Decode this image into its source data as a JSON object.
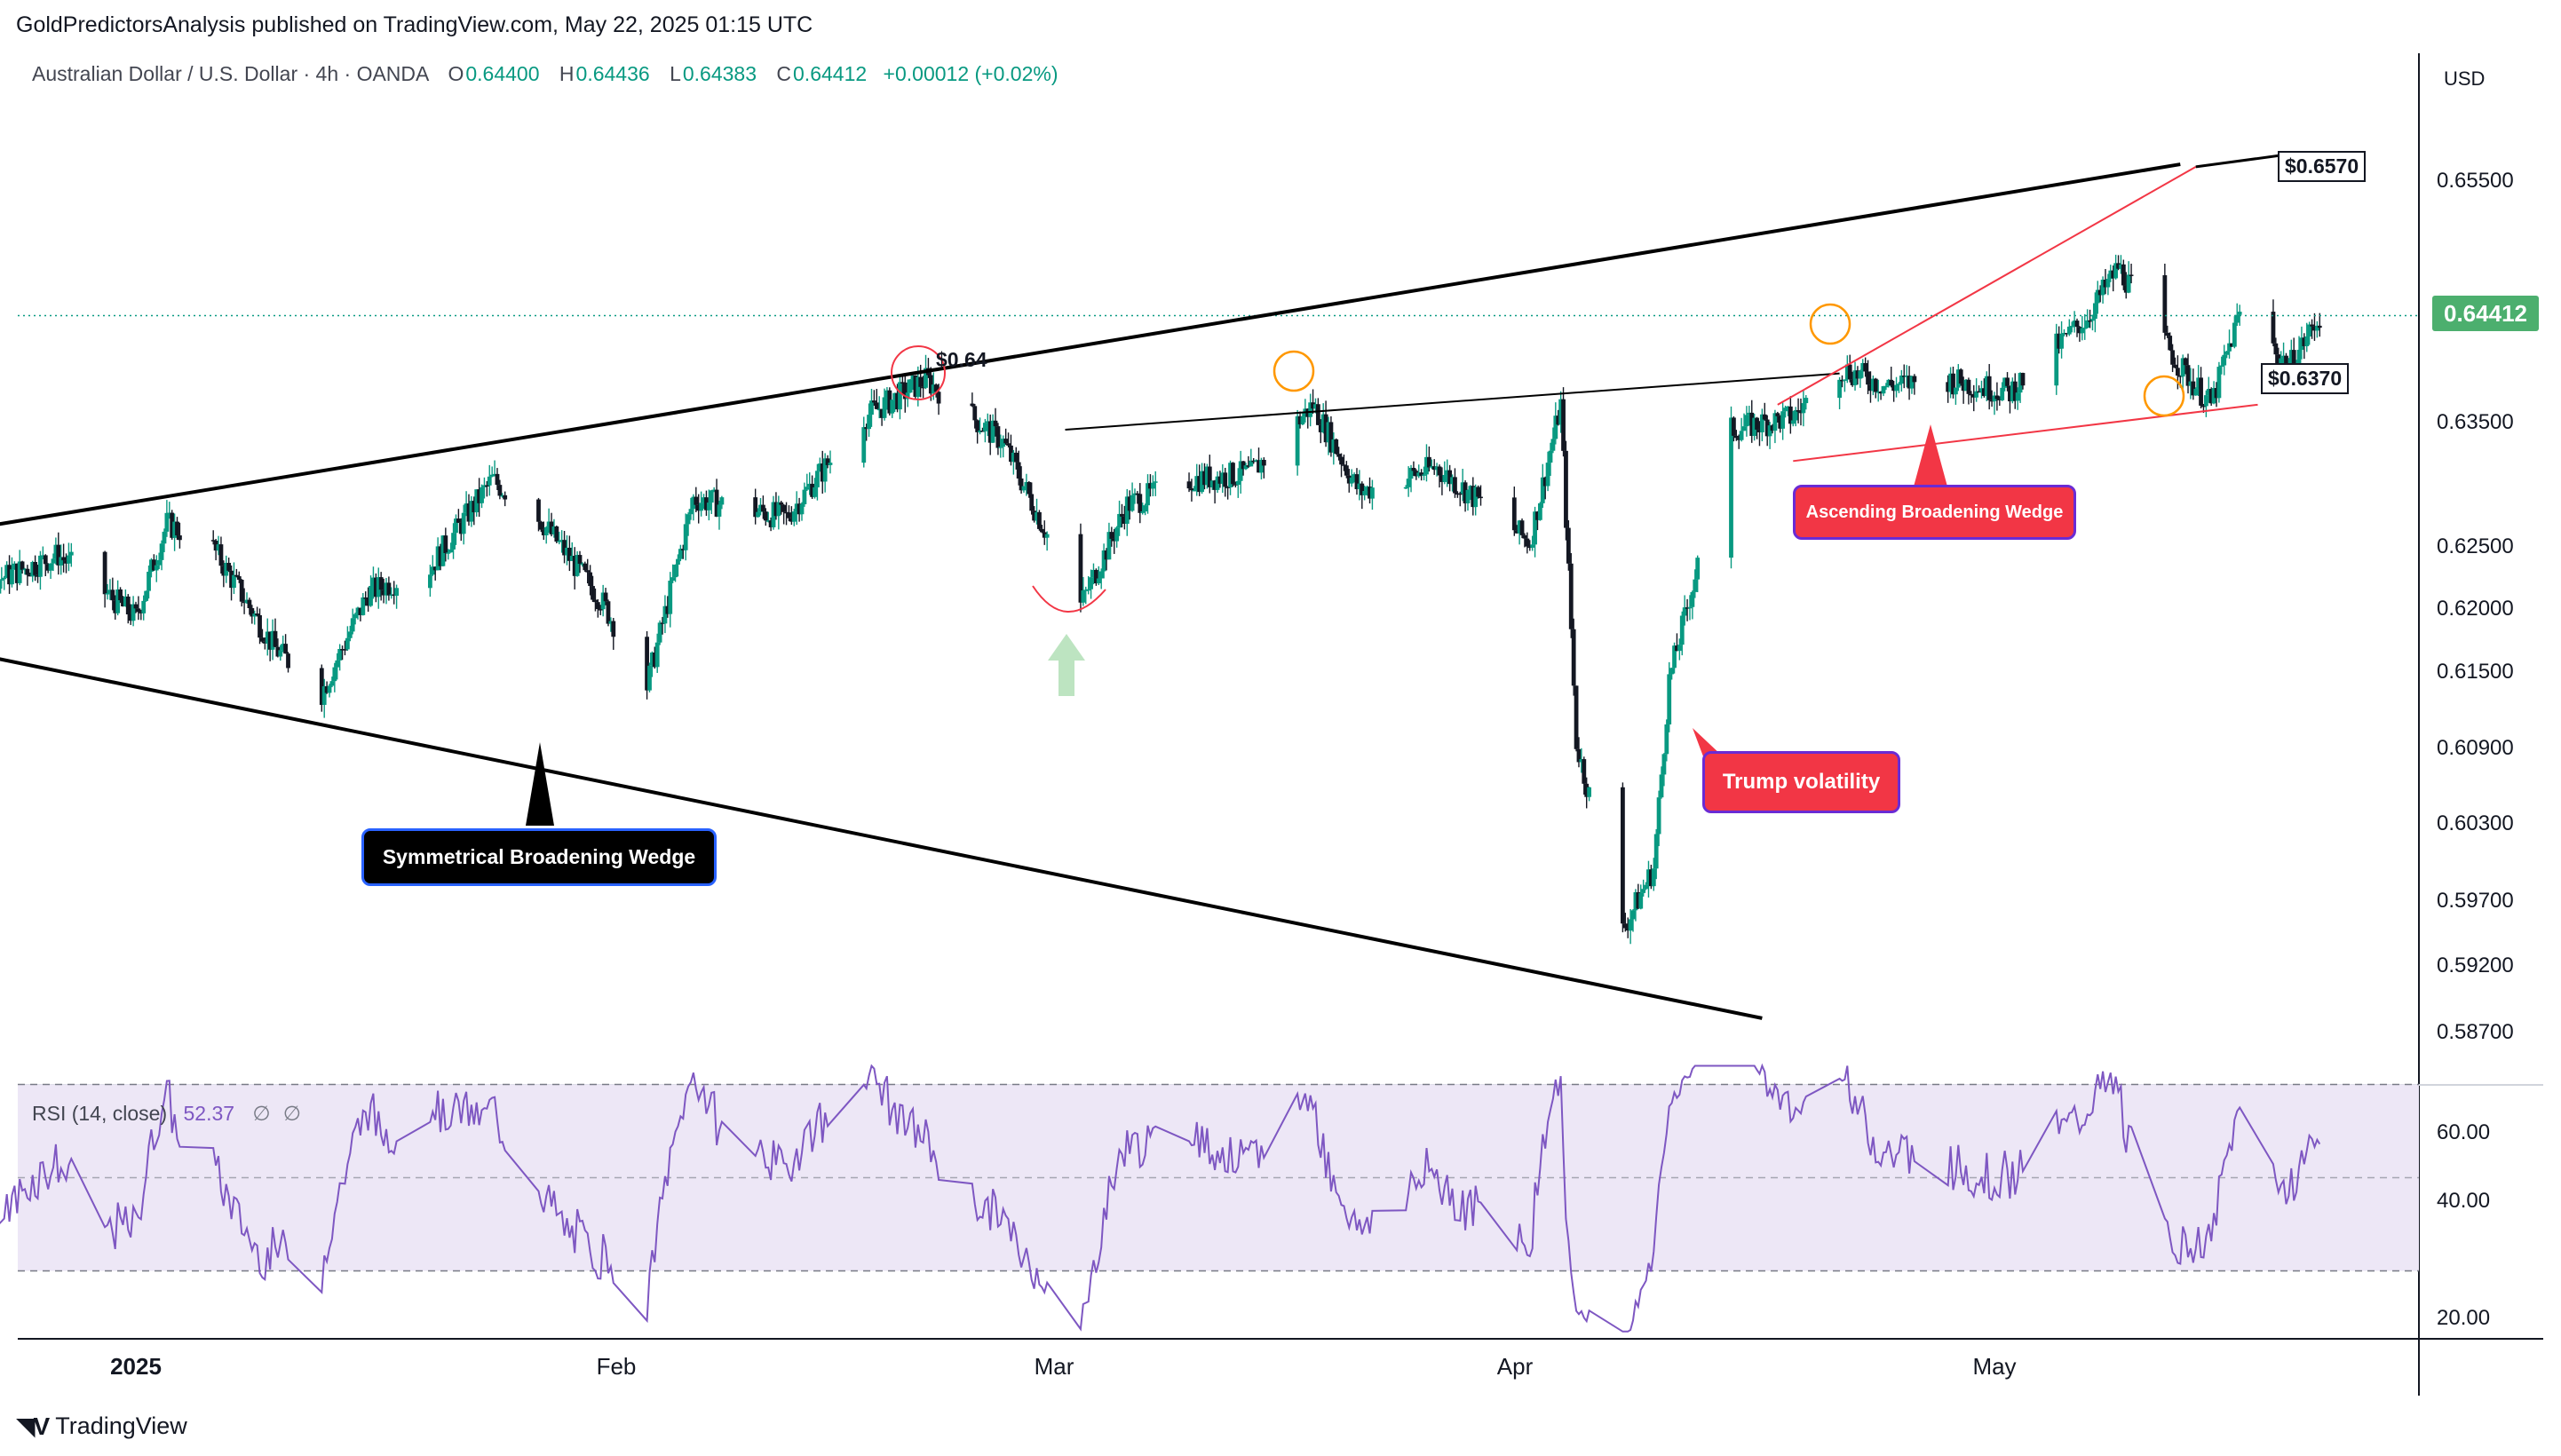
{
  "header": {
    "publisher_line": "GoldPredictorsAnalysis published on TradingView.com, May 22, 2025 01:15 UTC"
  },
  "legend": {
    "symbol": "Australian Dollar / U.S. Dollar · 4h · OANDA",
    "open_label": "O",
    "open": "0.64400",
    "high_label": "H",
    "high": "0.64436",
    "low_label": "L",
    "low": "0.64383",
    "close_label": "C",
    "close": "0.64412",
    "change": "+0.00012 (+0.02%)"
  },
  "rsi_legend": {
    "name": "RSI (14, close)",
    "value": "52.37",
    "extra1": "∅",
    "extra2": "∅"
  },
  "axis": {
    "currency": "USD",
    "price_ticks": [
      "0.65500",
      "0.63500",
      "0.62500",
      "0.62000",
      "0.61500",
      "0.60900",
      "0.60300",
      "0.59700",
      "0.59200",
      "0.58700"
    ],
    "rsi_ticks": [
      "60.00",
      "40.00",
      "20.00"
    ],
    "time_ticks": [
      {
        "label": "2025",
        "bold": true
      },
      {
        "label": "Feb",
        "bold": false
      },
      {
        "label": "Mar",
        "bold": false
      },
      {
        "label": "Apr",
        "bold": false
      },
      {
        "label": "May",
        "bold": false
      }
    ],
    "last_price": "0.64412"
  },
  "annotations": {
    "top_target": "$0.6570",
    "support": "$0.6370",
    "resistance_label": "$0.64",
    "symmetrical_wedge": "Symmetrical Broadening Wedge",
    "ascending_wedge": "Ascending Broadening Wedge",
    "trump": "Trump volatility"
  },
  "brand": {
    "name": "TradingView"
  },
  "colors": {
    "up": "#089981",
    "down": "#131722",
    "rsi": "#7e57c2",
    "rsi_band": "#ede7f6",
    "wedge_black": "#000000",
    "wedge_red": "#f23645",
    "highlight_orange": "#ff9800",
    "last_price_bg": "#4caf6e"
  },
  "chart_data": [
    {
      "type": "candlestick",
      "title": "Australian Dollar / U.S. Dollar · 4h · OANDA",
      "x_range": [
        "2024-12-16",
        "2025-05-22"
      ],
      "ylim": [
        0.585,
        0.659
      ],
      "anchor_path": [
        [
          "2024-12-16",
          0.6275
        ],
        [
          "2024-12-23",
          0.623
        ],
        [
          "2024-12-27",
          0.625
        ],
        [
          "2025-01-01",
          0.62
        ],
        [
          "2025-01-03",
          0.6275
        ],
        [
          "2025-01-06",
          0.6255
        ],
        [
          "2025-01-10",
          0.6175
        ],
        [
          "2025-01-13",
          0.614
        ],
        [
          "2025-01-16",
          0.622
        ],
        [
          "2025-01-20",
          0.624
        ],
        [
          "2025-01-24",
          0.631
        ],
        [
          "2025-01-27",
          0.628
        ],
        [
          "2025-01-31",
          0.6215
        ],
        [
          "2025-02-03",
          0.6145
        ],
        [
          "2025-02-06",
          0.6295
        ],
        [
          "2025-02-12",
          0.628
        ],
        [
          "2025-02-17",
          0.636
        ],
        [
          "2025-02-21",
          0.639
        ],
        [
          "2025-02-26",
          0.634
        ],
        [
          "2025-03-03",
          0.621
        ],
        [
          "2025-03-06",
          0.629
        ],
        [
          "2025-03-10",
          0.631
        ],
        [
          "2025-03-14",
          0.6315
        ],
        [
          "2025-03-18",
          0.637
        ],
        [
          "2025-03-21",
          0.63
        ],
        [
          "2025-03-26",
          0.632
        ],
        [
          "2025-04-01",
          0.626
        ],
        [
          "2025-04-03",
          0.637
        ],
        [
          "2025-04-04",
          0.61
        ],
        [
          "2025-04-07",
          0.595
        ],
        [
          "2025-04-09",
          0.6
        ],
        [
          "2025-04-10",
          0.615
        ],
        [
          "2025-04-14",
          0.635
        ],
        [
          "2025-04-18",
          0.636
        ],
        [
          "2025-04-21",
          0.64
        ],
        [
          "2025-04-24",
          0.6385
        ],
        [
          "2025-04-28",
          0.639
        ],
        [
          "2025-05-02",
          0.638
        ],
        [
          "2025-05-07",
          0.644
        ],
        [
          "2025-05-09",
          0.648
        ],
        [
          "2025-05-13",
          0.64
        ],
        [
          "2025-05-15",
          0.637
        ],
        [
          "2025-05-17",
          0.645
        ],
        [
          "2025-05-20",
          0.64
        ],
        [
          "2025-05-22",
          0.6441
        ]
      ],
      "trendlines": [
        {
          "name": "upper-symmetrical",
          "from": [
            "2024-12-16",
            0.626
          ],
          "to": [
            "2025-05-13",
            0.6562
          ]
        },
        {
          "name": "lower-symmetrical",
          "from": [
            "2024-12-16",
            0.6185
          ],
          "to": [
            "2025-04-16",
            0.588
          ]
        },
        {
          "name": "mid-resistance",
          "from": [
            "2025-03-02",
            0.635
          ],
          "to": [
            "2025-04-21",
            0.6395
          ]
        },
        {
          "name": "ascending-upper",
          "from": [
            "2025-04-17",
            0.637
          ],
          "to": [
            "2025-05-14",
            0.656
          ]
        },
        {
          "name": "ascending-lower",
          "from": [
            "2025-04-18",
            0.6325
          ],
          "to": [
            "2025-05-18",
            0.637
          ]
        },
        {
          "name": "target-line",
          "from": [
            "2025-05-14",
            0.656
          ],
          "to": [
            "2025-05-20",
            0.657
          ]
        }
      ],
      "levels": {
        "last": 0.64412,
        "target": 0.657,
        "support": 0.637,
        "resistance": 0.64
      }
    },
    {
      "type": "line",
      "title": "RSI (14, close)",
      "ylim": [
        17,
        74
      ],
      "bands": {
        "upper": 70,
        "middle": 50,
        "lower": 30
      },
      "last": 52.37
    }
  ]
}
